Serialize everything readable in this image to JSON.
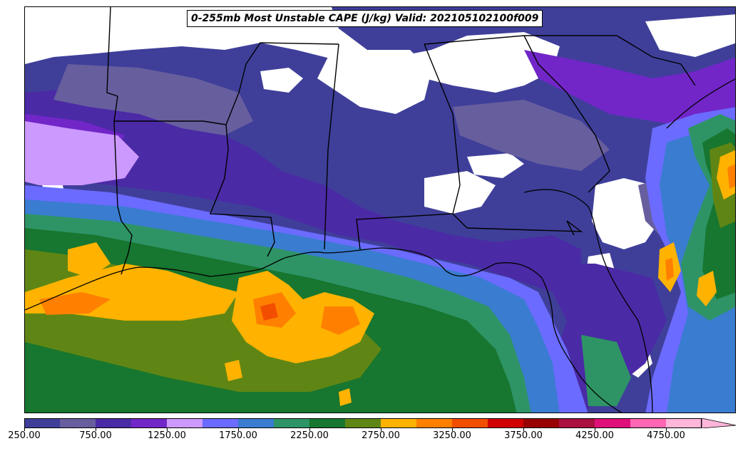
{
  "title": "0-255mb Most Unstable CAPE (J/kg) Valid: 202105102100f009",
  "colorbar": {
    "min": 250,
    "max": 5000,
    "step": 250,
    "extend": "max",
    "colors": [
      "#3f3f9a",
      "#675e9e",
      "#4b2aa6",
      "#7226c8",
      "#cc99ff",
      "#6b6bff",
      "#3a7cd0",
      "#2e9466",
      "#17762f",
      "#5f8614",
      "#ffb300",
      "#ff8000",
      "#f24e00",
      "#d00000",
      "#990000",
      "#aa1040",
      "#e0107a",
      "#ff66b3",
      "#ffb6d9"
    ],
    "tick_labels": [
      "250.00",
      "750.00",
      "1250.00",
      "1750.00",
      "2250.00",
      "2750.00",
      "3250.00",
      "3750.00",
      "4250.00",
      "4750.00"
    ],
    "tick_values": [
      250,
      750,
      1250,
      1750,
      2250,
      2750,
      3250,
      3750,
      4250,
      4750
    ]
  }
}
